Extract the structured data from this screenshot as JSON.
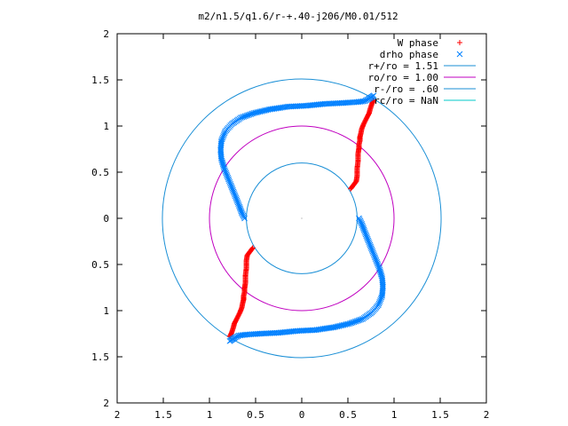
{
  "chart_data": {
    "type": "scatter",
    "title": "m2/n1.5/q1.6/r-+.40-j206/M0.01/512",
    "xlabel": "",
    "ylabel": "",
    "xlim": [
      -2,
      2
    ],
    "ylim": [
      -2,
      2
    ],
    "x_ticks": [
      "2",
      "1.5",
      "1",
      "0.5",
      "0",
      "0.5",
      "1",
      "1.5",
      "2"
    ],
    "y_ticks": [
      "2",
      "1.5",
      "1",
      "0.5",
      "0",
      "0.5",
      "1",
      "1.5",
      "2"
    ],
    "grid": false,
    "legend_position": "top-right",
    "colors": {
      "w_phase": "#ff0000",
      "drho_phase": "#0080ff",
      "r_plus": "#1a8fd6",
      "r_o": "#c000c0",
      "r_minus": "#1a8fd6",
      "r_c": "#00c8c8",
      "axes": "#000000"
    },
    "legend": [
      {
        "label": "W phase",
        "marker": "+"
      },
      {
        "label": "drho phase",
        "marker": "x"
      },
      {
        "label": "r+/ro = 1.51",
        "marker": "line"
      },
      {
        "label": "ro/ro = 1.00",
        "marker": "line"
      },
      {
        "label": "r-/ro = .60",
        "marker": "line"
      },
      {
        "label": "rc/ro = NaN",
        "marker": "line"
      }
    ],
    "circles": [
      {
        "name": "r+/ro = 1.51",
        "radius": 1.51
      },
      {
        "name": "ro/ro = 1.00",
        "radius": 1.0
      },
      {
        "name": "r-/ro = .60",
        "radius": 0.6
      }
    ],
    "series": [
      {
        "name": "W phase",
        "marker": "+",
        "x": [
          0.53,
          0.56,
          0.59,
          0.6,
          0.6,
          0.61,
          0.61,
          0.62,
          0.62,
          0.63,
          0.63,
          0.64,
          0.65,
          0.67,
          0.69,
          0.71,
          0.73,
          0.74,
          0.75,
          0.76,
          0.77,
          0.78,
          -0.53,
          -0.56,
          -0.59,
          -0.6,
          -0.6,
          -0.61,
          -0.61,
          -0.62,
          -0.62,
          -0.63,
          -0.63,
          -0.64,
          -0.65,
          -0.67,
          -0.69,
          -0.71,
          -0.73,
          -0.74,
          -0.75,
          -0.76,
          -0.77,
          -0.78
        ],
        "y": [
          0.32,
          0.36,
          0.4,
          0.46,
          0.54,
          0.62,
          0.7,
          0.76,
          0.8,
          0.84,
          0.88,
          0.92,
          0.97,
          1.02,
          1.06,
          1.1,
          1.14,
          1.18,
          1.21,
          1.24,
          1.26,
          1.28,
          -0.32,
          -0.36,
          -0.4,
          -0.46,
          -0.54,
          -0.62,
          -0.7,
          -0.76,
          -0.8,
          -0.84,
          -0.88,
          -0.92,
          -0.97,
          -1.02,
          -1.06,
          -1.1,
          -1.14,
          -1.18,
          -1.21,
          -1.24,
          -1.26,
          -1.28
        ]
      },
      {
        "name": "drho phase",
        "marker": "x",
        "x": [
          0.62,
          0.65,
          0.68,
          0.72,
          0.76,
          0.8,
          0.84,
          0.87,
          0.88,
          0.87,
          0.83,
          0.76,
          0.66,
          0.52,
          0.35,
          0.15,
          -0.05,
          -0.25,
          -0.45,
          -0.6,
          -0.68,
          -0.72,
          -0.75,
          -0.78,
          -0.62,
          -0.65,
          -0.68,
          -0.72,
          -0.76,
          -0.8,
          -0.84,
          -0.87,
          -0.88,
          -0.87,
          -0.83,
          -0.76,
          -0.66,
          -0.52,
          -0.35,
          -0.15,
          0.05,
          0.25,
          0.45,
          0.6,
          0.68,
          0.72,
          0.75,
          0.78
        ],
        "y": [
          0.0,
          -0.06,
          -0.14,
          -0.24,
          -0.34,
          -0.44,
          -0.54,
          -0.64,
          -0.74,
          -0.84,
          -0.94,
          -1.02,
          -1.09,
          -1.14,
          -1.18,
          -1.21,
          -1.22,
          -1.24,
          -1.25,
          -1.26,
          -1.27,
          -1.29,
          -1.31,
          -1.33,
          0.0,
          0.06,
          0.14,
          0.24,
          0.34,
          0.44,
          0.54,
          0.64,
          0.74,
          0.84,
          0.94,
          1.02,
          1.09,
          1.14,
          1.18,
          1.21,
          1.22,
          1.24,
          1.25,
          1.26,
          1.27,
          1.29,
          1.31,
          1.33
        ]
      }
    ]
  }
}
